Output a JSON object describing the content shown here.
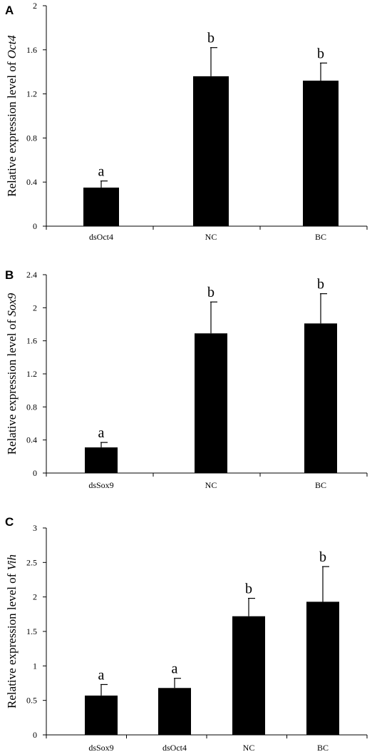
{
  "chart_data": [
    {
      "type": "bar",
      "panel": "A",
      "ylabel_prefix": "Relative expression level of ",
      "ylabel_gene": "Oct4",
      "categories": [
        "dsOct4",
        "NC",
        "BC"
      ],
      "values": [
        0.35,
        1.36,
        1.32
      ],
      "errors": [
        0.06,
        0.26,
        0.16
      ],
      "significance": [
        "a",
        "b",
        "b"
      ],
      "yticks": [
        "0",
        "0.4",
        "0.8",
        "1.2",
        "1.6",
        "2"
      ],
      "ylim": [
        0,
        2
      ],
      "grid": false
    },
    {
      "type": "bar",
      "panel": "B",
      "ylabel_prefix": "Relative expression level of ",
      "ylabel_gene": "Sox9",
      "categories": [
        "dsSox9",
        "NC",
        "BC"
      ],
      "values": [
        0.31,
        1.69,
        1.81
      ],
      "errors": [
        0.06,
        0.38,
        0.36
      ],
      "significance": [
        "a",
        "b",
        "b"
      ],
      "yticks": [
        "0",
        "0.4",
        "0.8",
        "1.2",
        "1.6",
        "2",
        "2.4"
      ],
      "ylim": [
        0,
        2.4
      ],
      "grid": false
    },
    {
      "type": "bar",
      "panel": "C",
      "ylabel_prefix": "Relative expression level of ",
      "ylabel_gene": "Vih",
      "categories": [
        "dsSox9",
        "dsOct4",
        "NC",
        "BC"
      ],
      "values": [
        0.57,
        0.68,
        1.72,
        1.93
      ],
      "errors": [
        0.16,
        0.14,
        0.26,
        0.51
      ],
      "significance": [
        "a",
        "a",
        "b",
        "b"
      ],
      "yticks": [
        "0",
        "0.5",
        "1",
        "1.5",
        "2",
        "2.5",
        "3"
      ],
      "ylim": [
        0,
        3
      ],
      "grid": false
    }
  ]
}
